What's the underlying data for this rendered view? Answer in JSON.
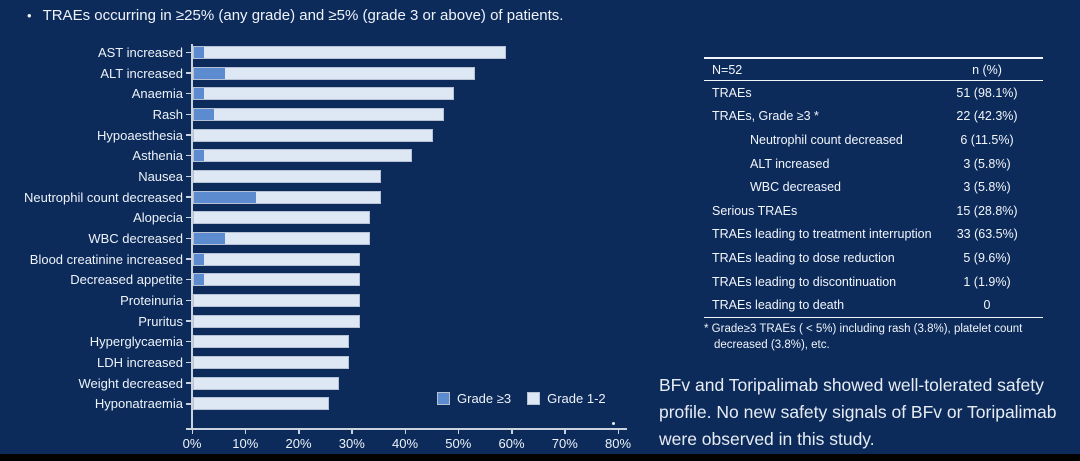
{
  "title_bullet": "TRAEs occurring in ≥25% (any grade) and ≥5% (grade 3 or above) of patients.",
  "bullet_glyph": "•",
  "colors": {
    "background": "#0C2B5B",
    "grade3_blue": "#5C8BD0",
    "grade12_light": "#DEE8F4",
    "axis_line": "#CBD3DF",
    "text": "#F2F5FA"
  },
  "chart_data": {
    "type": "bar",
    "orientation": "horizontal",
    "stacked": true,
    "categories": [
      "AST increased",
      "ALT increased",
      "Anaemia",
      "Rash",
      "Hypoaesthesia",
      "Asthenia",
      "Nausea",
      "Neutrophil count decreased",
      "Alopecia",
      "WBC decreased",
      "Blood creatinine increased",
      "Decreased appetite",
      "Proteinuria",
      "Pruritus",
      "Hyperglycaemia",
      "LDH increased",
      "Weight decreased",
      "Hyponatraemia"
    ],
    "series": [
      {
        "name": "Grade ≥3",
        "values": [
          1.9,
          5.8,
          1.9,
          3.8,
          0,
          1.9,
          0,
          11.5,
          0,
          5.8,
          1.9,
          1.9,
          0,
          0,
          0,
          0,
          0,
          0
        ]
      },
      {
        "name": "Grade 1-2",
        "values": [
          55.8,
          46.1,
          46.2,
          42.4,
          44.2,
          38.5,
          34.6,
          23.1,
          32.7,
          26.9,
          28.9,
          28.9,
          30.8,
          30.8,
          28.8,
          28.8,
          26.9,
          25.0
        ]
      }
    ],
    "totals_any_grade": [
      57.7,
      51.9,
      48.1,
      46.2,
      44.2,
      40.4,
      34.6,
      34.6,
      32.7,
      32.7,
      30.8,
      30.8,
      30.8,
      30.8,
      28.8,
      28.8,
      26.9,
      25.0
    ],
    "xlim": [
      0,
      80
    ],
    "x_ticks": [
      "0%",
      "10%",
      "20%",
      "30%",
      "40%",
      "50%",
      "60%",
      "70%",
      "80%"
    ],
    "grid": false,
    "legend": [
      {
        "label": "Grade ≥3",
        "color": "#5C8BD0"
      },
      {
        "label": "Grade 1-2",
        "color": "#DEE8F4"
      }
    ],
    "legend_position": "bottom-right"
  },
  "table": {
    "header": {
      "label": "N=52",
      "value": "n (%)"
    },
    "rows": [
      {
        "label": "TRAEs",
        "value": "51 (98.1%)",
        "indent": false
      },
      {
        "label": "TRAEs, Grade ≥3 *",
        "value": "22 (42.3%)",
        "indent": false
      },
      {
        "label": "Neutrophil count decreased",
        "value": "6 (11.5%)",
        "indent": true
      },
      {
        "label": "ALT increased",
        "value": "3 (5.8%)",
        "indent": true
      },
      {
        "label": "WBC decreased",
        "value": "3 (5.8%)",
        "indent": true
      },
      {
        "label": "Serious TRAEs",
        "value": "15 (28.8%)",
        "indent": false
      },
      {
        "label": "TRAEs leading to treatment interruption",
        "value": "33 (63.5%)",
        "indent": false
      },
      {
        "label": "TRAEs leading to dose reduction",
        "value": "5 (9.6%)",
        "indent": false
      },
      {
        "label": "TRAEs leading to discontinuation",
        "value": "1 (1.9%)",
        "indent": false
      },
      {
        "label": "TRAEs leading to death",
        "value": "0",
        "indent": false
      }
    ],
    "footnote": "* Grade≥3 TRAEs ( < 5%) including rash (3.8%), platelet count decreased (3.8%), etc."
  },
  "conclusion": "BFv and Toripalimab showed well-tolerated safety profile. No new safety signals of BFv or Toripalimab were observed in this study."
}
